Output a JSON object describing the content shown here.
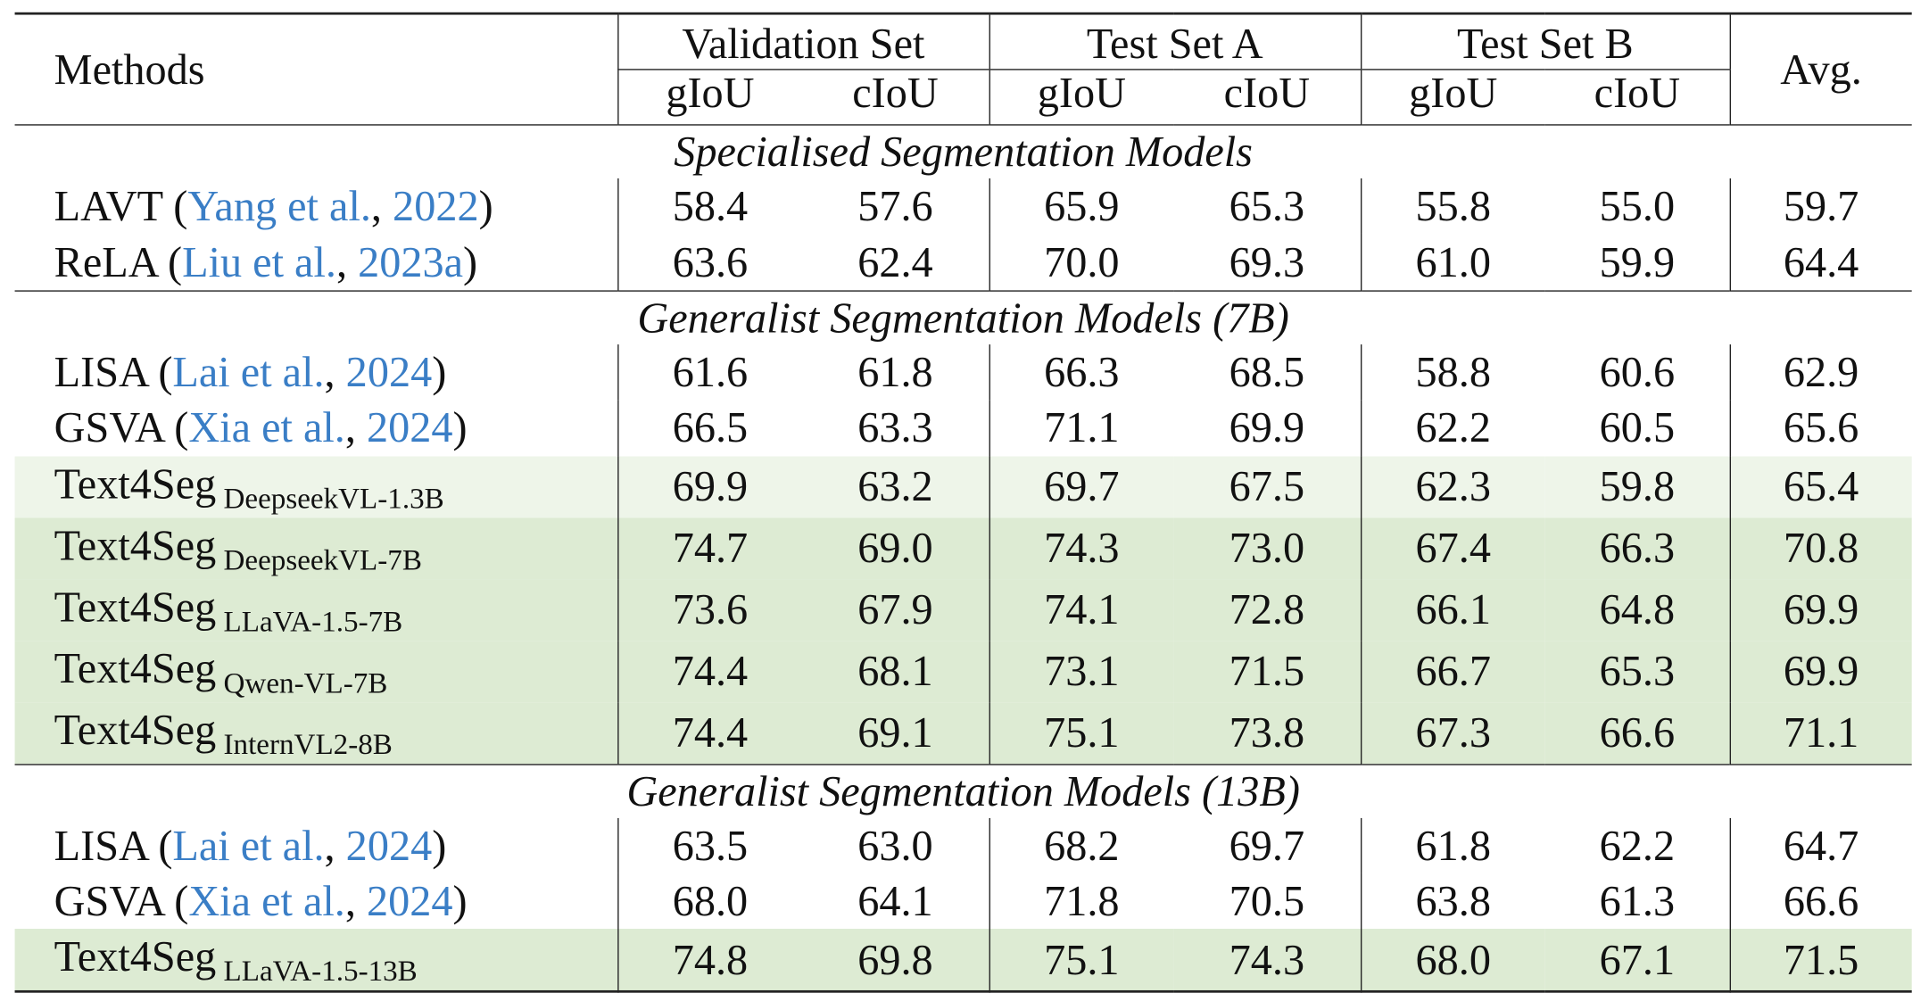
{
  "header": {
    "methods": "Methods",
    "groups": [
      "Validation Set",
      "Test Set A",
      "Test Set B"
    ],
    "metrics": [
      "gIoU",
      "cIoU",
      "gIoU",
      "cIoU",
      "gIoU",
      "cIoU"
    ],
    "avg": "Avg."
  },
  "sections": [
    {
      "title": "Specialised Segmentation Models",
      "rows": [
        {
          "name": "LAVT",
          "cite_open": " (",
          "cite_author": "Yang et al.",
          "cite_sep": ", ",
          "cite_year": "2022",
          "cite_close": ")",
          "sub": "",
          "values": [
            "58.4",
            "57.6",
            "65.9",
            "65.3",
            "55.8",
            "55.0",
            "59.7"
          ],
          "bold": [
            false,
            false,
            false,
            false,
            false,
            false,
            false
          ],
          "highlight": "none"
        },
        {
          "name": "ReLA",
          "cite_open": " (",
          "cite_author": "Liu et al.",
          "cite_sep": ", ",
          "cite_year": "2023a",
          "cite_close": ")",
          "sub": "",
          "values": [
            "63.6",
            "62.4",
            "70.0",
            "69.3",
            "61.0",
            "59.9",
            "64.4"
          ],
          "bold": [
            false,
            false,
            false,
            false,
            false,
            false,
            false
          ],
          "highlight": "none"
        }
      ]
    },
    {
      "title": "Generalist Segmentation Models (7B)",
      "rows": [
        {
          "name": "LISA",
          "cite_open": " (",
          "cite_author": "Lai et al.",
          "cite_sep": ", ",
          "cite_year": "2024",
          "cite_close": ")",
          "sub": "",
          "values": [
            "61.6",
            "61.8",
            "66.3",
            "68.5",
            "58.8",
            "60.6",
            "62.9"
          ],
          "bold": [
            false,
            false,
            false,
            false,
            false,
            false,
            false
          ],
          "highlight": "none"
        },
        {
          "name": "GSVA",
          "cite_open": " (",
          "cite_author": "Xia et al.",
          "cite_sep": ", ",
          "cite_year": "2024",
          "cite_close": ")",
          "sub": "",
          "values": [
            "66.5",
            "63.3",
            "71.1",
            "69.9",
            "62.2",
            "60.5",
            "65.6"
          ],
          "bold": [
            false,
            false,
            false,
            false,
            false,
            false,
            false
          ],
          "highlight": "none"
        },
        {
          "name": "Text4Seg",
          "sub": "DeepseekVL-1.3B",
          "values": [
            "69.9",
            "63.2",
            "69.7",
            "67.5",
            "62.3",
            "59.8",
            "65.4"
          ],
          "bold": [
            false,
            false,
            false,
            false,
            false,
            false,
            false
          ],
          "highlight": "light"
        },
        {
          "name": "Text4Seg",
          "sub": "DeepseekVL-7B",
          "values": [
            "74.7",
            "69.0",
            "74.3",
            "73.0",
            "67.4",
            "66.3",
            "70.8"
          ],
          "bold": [
            true,
            false,
            false,
            false,
            false,
            false,
            false
          ],
          "highlight": "green"
        },
        {
          "name": "Text4Seg",
          "sub": "LLaVA-1.5-7B",
          "values": [
            "73.6",
            "67.9",
            "74.1",
            "72.8",
            "66.1",
            "64.8",
            "69.9"
          ],
          "bold": [
            false,
            false,
            false,
            false,
            false,
            false,
            false
          ],
          "highlight": "green"
        },
        {
          "name": "Text4Seg",
          "sub": "Qwen-VL-7B",
          "values": [
            "74.4",
            "68.1",
            "73.1",
            "71.5",
            "66.7",
            "65.3",
            "69.9"
          ],
          "bold": [
            false,
            false,
            false,
            false,
            false,
            false,
            false
          ],
          "highlight": "green"
        },
        {
          "name": "Text4Seg",
          "sub": "InternVL2-8B",
          "values": [
            "74.4",
            "69.1",
            "75.1",
            "73.8",
            "67.3",
            "66.6",
            "71.1"
          ],
          "bold": [
            false,
            true,
            true,
            true,
            true,
            true,
            true
          ],
          "highlight": "green"
        }
      ]
    },
    {
      "title": "Generalist Segmentation Models (13B)",
      "rows": [
        {
          "name": "LISA",
          "cite_open": " (",
          "cite_author": "Lai et al.",
          "cite_sep": ", ",
          "cite_year": "2024",
          "cite_close": ")",
          "sub": "",
          "values": [
            "63.5",
            "63.0",
            "68.2",
            "69.7",
            "61.8",
            "62.2",
            "64.7"
          ],
          "bold": [
            false,
            false,
            false,
            false,
            false,
            false,
            false
          ],
          "highlight": "none"
        },
        {
          "name": "GSVA",
          "cite_open": " (",
          "cite_author": "Xia et al.",
          "cite_sep": ", ",
          "cite_year": "2024",
          "cite_close": ")",
          "sub": "",
          "values": [
            "68.0",
            "64.1",
            "71.8",
            "70.5",
            "63.8",
            "61.3",
            "66.6"
          ],
          "bold": [
            false,
            false,
            false,
            false,
            false,
            false,
            false
          ],
          "highlight": "none"
        },
        {
          "name": "Text4Seg",
          "sub": "LLaVA-1.5-13B",
          "values": [
            "74.8",
            "69.8",
            "75.1",
            "74.3",
            "68.0",
            "67.1",
            "71.5"
          ],
          "bold": [
            true,
            true,
            true,
            true,
            true,
            true,
            true
          ],
          "highlight": "green"
        }
      ]
    }
  ],
  "colors": {
    "citation": "#3a7ec6",
    "highlight": "#ddebd3",
    "highlight_light": "#eef5e9"
  }
}
